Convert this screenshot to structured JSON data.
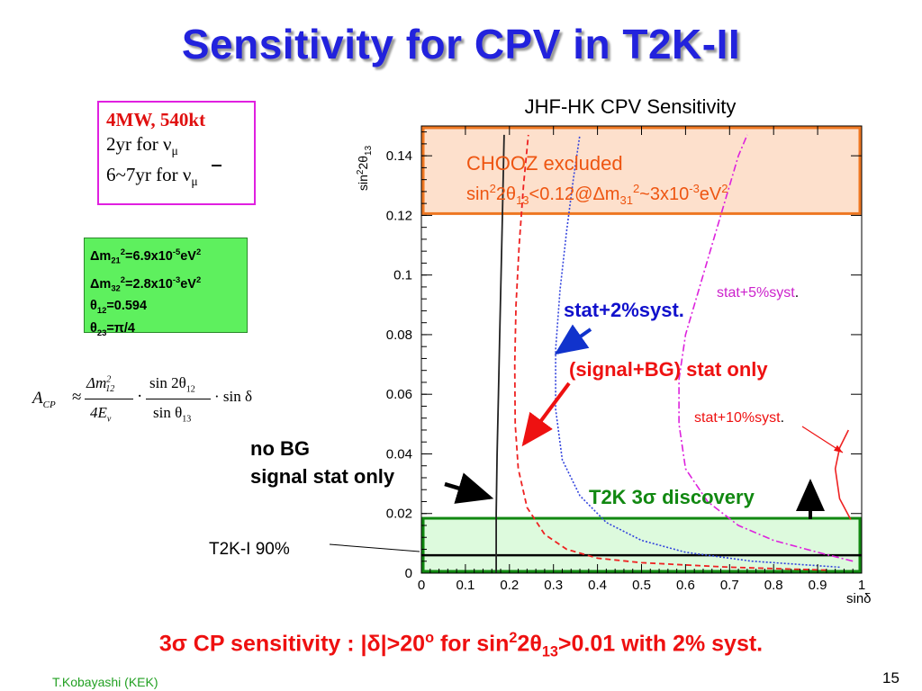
{
  "slide": {
    "title": "Sensitivity for CPV in T2K-II",
    "author": "T.Kobayashi (KEK)",
    "page_number": "15",
    "title_color": "#2222dd"
  },
  "params_box": {
    "line1": "4MW, 540kt",
    "line2_prefix": "2yr for ν",
    "line2_sub": "μ",
    "line3_prefix": "6~7yr for ν",
    "line3_sub": "μ"
  },
  "oscillation_params": {
    "dm21_label": "Δm",
    "dm21_sub": "21",
    "dm21_sup": "2",
    "dm21_value": "=6.9x10",
    "dm21_exp": "-5",
    "dm21_unit": "eV",
    "dm21_unit_sup": "2",
    "dm32_label": "Δm",
    "dm32_sub": "32",
    "dm32_sup": "2",
    "dm32_value": "=2.8x10",
    "dm32_exp": "-3",
    "dm32_unit": "eV",
    "dm32_unit_sup": "2",
    "theta12_label": "θ",
    "theta12_sub": "12",
    "theta12_value": "=0.594",
    "theta23_label": "θ",
    "theta23_sub": "23",
    "theta23_value": "=π/4"
  },
  "formula": {
    "lhs": "A",
    "lhs_sub": "CP",
    "approx": "≈",
    "num1": "Δm",
    "num1_sup": "2",
    "num1_sub": "12",
    "den1": "4E",
    "den1_sub": "ν",
    "dot": "·",
    "num2": "sin 2θ",
    "num2_sub": "12",
    "den2": "sin θ",
    "den2_sub": "13",
    "tail": "· sin δ"
  },
  "bottom_line": {
    "p1": "3σ CP sensitivity : |δ|>20",
    "p1_sup": "o",
    "p2": " for sin",
    "p2_sup": "2",
    "p3": "2θ",
    "p3_sub": "13",
    "p4": ">0.01 with 2% syst."
  },
  "chart_data": {
    "type": "line",
    "title": "JHF-HK CPV Sensitivity",
    "xlabel": "sinδ",
    "ylabel_parts": {
      "a": "sin",
      "sup": "2",
      "b": "2θ",
      "sub": "13"
    },
    "xlim": [
      0,
      1
    ],
    "ylim": [
      0,
      0.15
    ],
    "x_ticks": [
      "0",
      "0.1",
      "0.2",
      "0.3",
      "0.4",
      "0.5",
      "0.6",
      "0.7",
      "0.8",
      "0.9",
      "1"
    ],
    "y_ticks": [
      {
        "value": 0,
        "label": "0"
      },
      {
        "value": 0.02,
        "label": "0.02"
      },
      {
        "value": 0.04,
        "label": "0.04"
      },
      {
        "value": 0.06,
        "label": "0.06"
      },
      {
        "value": 0.08,
        "label": "0.08"
      },
      {
        "value": 0.1,
        "label": "0.1"
      },
      {
        "value": 0.12,
        "label": "0.12"
      },
      {
        "value": 0.14,
        "label": "0.14"
      }
    ],
    "grid": false,
    "series": [
      {
        "key": "nobg",
        "color": "#222222",
        "dash": "",
        "width": 1.8,
        "points": [
          [
            0.17,
            0.0
          ],
          [
            0.17,
            0.02
          ],
          [
            0.172,
            0.04
          ],
          [
            0.175,
            0.06
          ],
          [
            0.178,
            0.08
          ],
          [
            0.181,
            0.1
          ],
          [
            0.184,
            0.12
          ],
          [
            0.187,
            0.14
          ],
          [
            0.188,
            0.147
          ]
        ]
      },
      {
        "key": "sigbg",
        "color": "#ee2222",
        "dash": "6,4",
        "width": 1.8,
        "points": [
          [
            0.92,
            0.001
          ],
          [
            0.7,
            0.002
          ],
          [
            0.5,
            0.0035
          ],
          [
            0.4,
            0.005
          ],
          [
            0.33,
            0.008
          ],
          [
            0.28,
            0.013
          ],
          [
            0.24,
            0.022
          ],
          [
            0.22,
            0.035
          ],
          [
            0.213,
            0.05
          ],
          [
            0.212,
            0.07
          ],
          [
            0.215,
            0.09
          ],
          [
            0.222,
            0.11
          ],
          [
            0.232,
            0.13
          ],
          [
            0.243,
            0.147
          ]
        ]
      },
      {
        "key": "syst2",
        "color": "#3344dd",
        "dash": "2,2",
        "width": 1.6,
        "points": [
          [
            0.95,
            0.002
          ],
          [
            0.75,
            0.004
          ],
          [
            0.6,
            0.007
          ],
          [
            0.5,
            0.011
          ],
          [
            0.42,
            0.017
          ],
          [
            0.36,
            0.026
          ],
          [
            0.32,
            0.038
          ],
          [
            0.305,
            0.055
          ],
          [
            0.305,
            0.075
          ],
          [
            0.315,
            0.095
          ],
          [
            0.33,
            0.115
          ],
          [
            0.345,
            0.132
          ],
          [
            0.36,
            0.147
          ]
        ]
      },
      {
        "key": "syst5",
        "color": "#dd22dd",
        "dash": "8,3,2,3",
        "width": 1.6,
        "points": [
          [
            0.98,
            0.004
          ],
          [
            0.9,
            0.007
          ],
          [
            0.8,
            0.011
          ],
          [
            0.72,
            0.016
          ],
          [
            0.65,
            0.024
          ],
          [
            0.6,
            0.035
          ],
          [
            0.585,
            0.05
          ],
          [
            0.585,
            0.065
          ],
          [
            0.6,
            0.08
          ],
          [
            0.63,
            0.095
          ],
          [
            0.66,
            0.11
          ],
          [
            0.69,
            0.125
          ],
          [
            0.72,
            0.14
          ],
          [
            0.74,
            0.147
          ]
        ]
      },
      {
        "key": "syst10",
        "color": "#ee2222",
        "dash": "",
        "width": 1.6,
        "points": [
          [
            0.975,
            0.018
          ],
          [
            0.95,
            0.025
          ],
          [
            0.94,
            0.035
          ],
          [
            0.95,
            0.042
          ],
          [
            0.97,
            0.048
          ]
        ]
      }
    ],
    "reference_line": {
      "value": 0.006,
      "label": "T2K-I 90%"
    },
    "regions": [
      {
        "key": "chooz",
        "from": 0.12,
        "to": 0.15,
        "fill": "#fde0cc",
        "border": "#ee7722",
        "label": "CHOOZ excluded",
        "label2": {
          "a": "sin",
          "sup1": "2",
          "b": "2θ",
          "sub1": "13",
          "c": "<0.12@Δm",
          "sub2": "31",
          "sup2": "2",
          "d": "~3x10",
          "sup3": "-3",
          "e": "eV",
          "sup4": "2"
        }
      },
      {
        "key": "t2k",
        "from": 0.0,
        "to": 0.019,
        "fill": "#ddfadd",
        "border": "#118811",
        "label": "T2K 3σ discovery"
      }
    ],
    "annotations": {
      "syst2": "stat+2%syst.",
      "sigbg": "(signal+BG) stat only",
      "syst5": "stat+5%syst",
      "syst5_dot": ".",
      "syst10": "stat+10%syst",
      "syst10_dot": ".",
      "nobg_1": "no BG",
      "nobg_2": "signal stat only"
    },
    "colors": {
      "chooz_label": "#ee5511",
      "syst2_label": "#1111cc",
      "sigbg_label": "#ee1111",
      "syst5_label": "#cc22cc",
      "syst10_label": "#ee1111",
      "t2k_label": "#118811"
    }
  }
}
